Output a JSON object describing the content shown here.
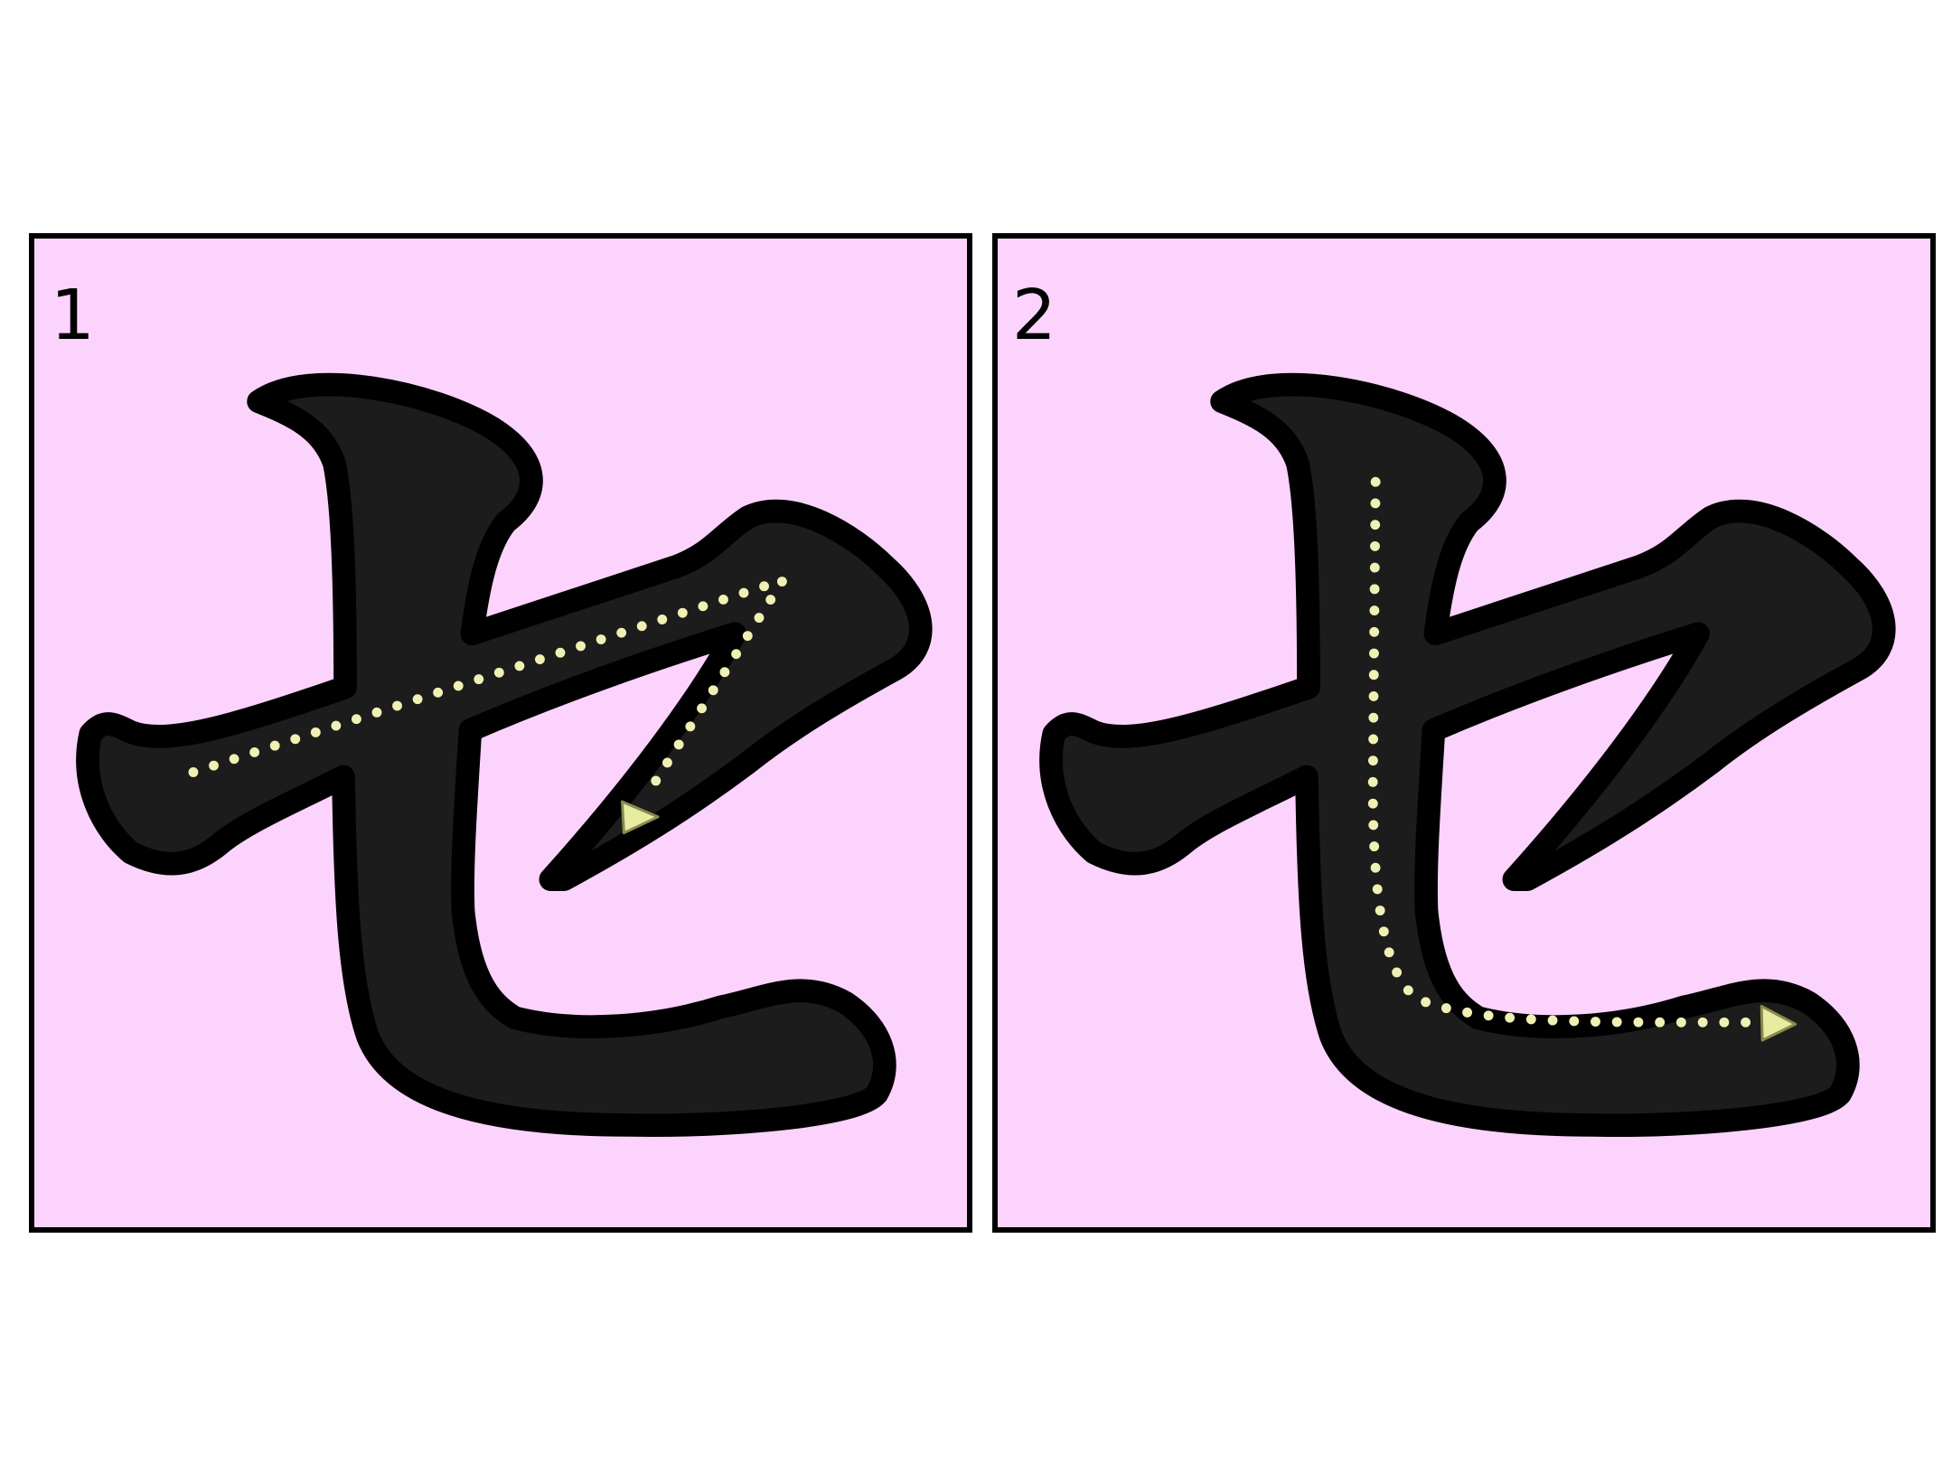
{
  "colors": {
    "panel_background": "#fcd3fc",
    "glyph_fill": "#1c1c1c",
    "glyph_outline": "#000000",
    "stroke_guide": "#f0f0b4",
    "arrow": "#e6eca0"
  },
  "panels": [
    {
      "step_label": "1",
      "icons": [
        "katakana-se-glyph",
        "dotted-stroke-path",
        "direction-arrow-icon"
      ]
    },
    {
      "step_label": "2",
      "icons": [
        "katakana-se-glyph",
        "dotted-stroke-path",
        "direction-arrow-icon"
      ]
    }
  ]
}
